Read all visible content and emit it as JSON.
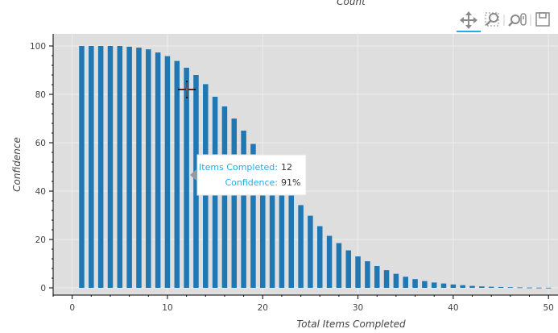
{
  "chart_data": {
    "type": "bar",
    "title": "Count",
    "xlabel": "Total Items Completed",
    "ylabel": "Confidence",
    "xlim": [
      -2,
      51
    ],
    "ylim": [
      -3,
      105
    ],
    "x_ticks": [
      0,
      10,
      20,
      30,
      40,
      50
    ],
    "y_ticks": [
      0,
      20,
      40,
      60,
      80,
      100
    ],
    "grid": true,
    "bar_color": "#1f77b4",
    "background": "#dedede",
    "x": [
      1,
      2,
      3,
      4,
      5,
      6,
      7,
      8,
      9,
      10,
      11,
      12,
      13,
      14,
      15,
      16,
      17,
      18,
      19,
      20,
      21,
      22,
      23,
      24,
      25,
      26,
      27,
      28,
      29,
      30,
      31,
      32,
      33,
      34,
      35,
      36,
      37,
      38,
      39,
      40,
      41,
      42,
      43,
      44,
      45,
      46,
      47,
      48,
      49,
      50
    ],
    "values": [
      100,
      100,
      100,
      100,
      100,
      99.7,
      99.3,
      98.6,
      97.3,
      95.8,
      93.8,
      91,
      88,
      84.2,
      79,
      75,
      70,
      65,
      59.5,
      55,
      50,
      45,
      40,
      34.2,
      29.8,
      25.5,
      21.5,
      18.5,
      15.5,
      13,
      11,
      9,
      7.3,
      5.8,
      4.6,
      3.6,
      2.8,
      2.2,
      1.8,
      1.4,
      1.1,
      0.8,
      0.6,
      0.45,
      0.35,
      0.25,
      0.18,
      0.12,
      0.08,
      0.05
    ]
  },
  "tooltip": {
    "items_label": "Items Completed:",
    "items_value": "12",
    "confidence_label": "Confidence:",
    "confidence_value": "91%"
  },
  "toolbar": {
    "tools": [
      "pan-icon",
      "box-zoom-icon",
      "wheel-zoom-icon",
      "save-icon"
    ]
  }
}
